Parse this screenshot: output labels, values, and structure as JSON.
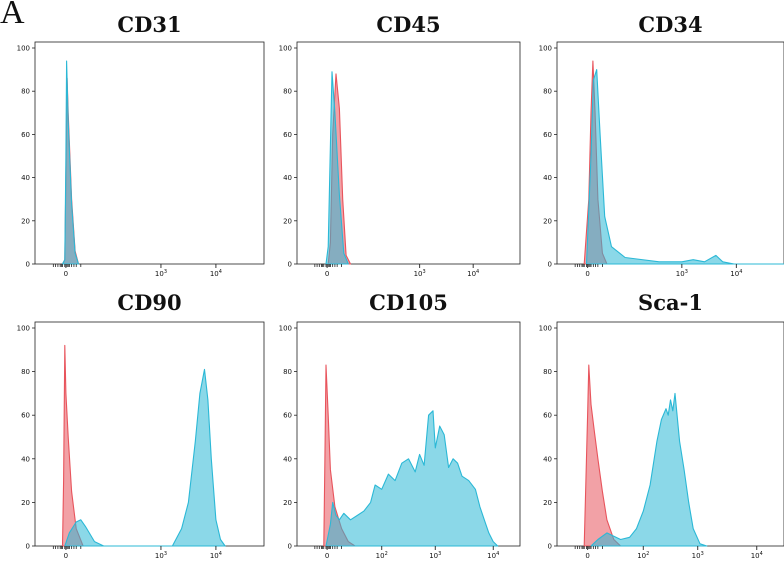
{
  "panel_label": "A",
  "chart_data": [
    {
      "type": "area",
      "title": "CD31",
      "xlabel": "",
      "ylabel": "",
      "ylim": [
        0,
        100
      ],
      "yticks": [
        "0",
        "20",
        "40",
        "60",
        "80",
        "100"
      ],
      "xticks": [
        {
          "base": "0",
          "exp": ""
        },
        {
          "base": "10",
          "exp": "3"
        },
        {
          "base": "10",
          "exp": "4"
        }
      ],
      "grid": false,
      "series": [
        {
          "color": "#e8545c",
          "points": [
            [
              0.12,
              0
            ],
            [
              0.13,
              2
            ],
            [
              0.135,
              40
            ],
            [
              0.14,
              86
            ],
            [
              0.145,
              70
            ],
            [
              0.16,
              30
            ],
            [
              0.175,
              6
            ],
            [
              0.19,
              0
            ]
          ]
        },
        {
          "color": "#2bb8d6",
          "points": [
            [
              0.12,
              0
            ],
            [
              0.13,
              2
            ],
            [
              0.135,
              50
            ],
            [
              0.138,
              94
            ],
            [
              0.145,
              66
            ],
            [
              0.16,
              28
            ],
            [
              0.175,
              5
            ],
            [
              0.19,
              0
            ]
          ]
        }
      ]
    },
    {
      "type": "area",
      "title": "CD45",
      "xlabel": "",
      "ylabel": "",
      "ylim": [
        0,
        100
      ],
      "yticks": [
        "0",
        "20",
        "40",
        "60",
        "80",
        "100"
      ],
      "xticks": [
        {
          "base": "0",
          "exp": ""
        },
        {
          "base": "10",
          "exp": "3"
        },
        {
          "base": "10",
          "exp": "4"
        }
      ],
      "grid": false,
      "series": [
        {
          "color": "#e8545c",
          "points": [
            [
              0.14,
              0
            ],
            [
              0.15,
              10
            ],
            [
              0.16,
              60
            ],
            [
              0.175,
              88
            ],
            [
              0.19,
              72
            ],
            [
              0.205,
              30
            ],
            [
              0.22,
              4
            ],
            [
              0.24,
              0
            ]
          ]
        },
        {
          "color": "#2bb8d6",
          "points": [
            [
              0.13,
              0
            ],
            [
              0.14,
              8
            ],
            [
              0.15,
              55
            ],
            [
              0.157,
              89
            ],
            [
              0.17,
              70
            ],
            [
              0.19,
              32
            ],
            [
              0.21,
              5
            ],
            [
              0.23,
              0
            ]
          ]
        }
      ]
    },
    {
      "type": "area",
      "title": "CD34",
      "xlabel": "",
      "ylabel": "",
      "ylim": [
        0,
        100
      ],
      "yticks": [
        "0",
        "20",
        "40",
        "60",
        "80",
        "100"
      ],
      "xticks": [
        {
          "base": "0",
          "exp": ""
        },
        {
          "base": "10",
          "exp": "3"
        },
        {
          "base": "10",
          "exp": "4"
        }
      ],
      "grid": false,
      "series": [
        {
          "color": "#e8545c",
          "points": [
            [
              0.12,
              0
            ],
            [
              0.14,
              30
            ],
            [
              0.15,
              70
            ],
            [
              0.158,
              94
            ],
            [
              0.168,
              70
            ],
            [
              0.18,
              30
            ],
            [
              0.2,
              5
            ],
            [
              0.22,
              0
            ]
          ]
        },
        {
          "color": "#2bb8d6",
          "points": [
            [
              0.13,
              0
            ],
            [
              0.15,
              50
            ],
            [
              0.16,
              85
            ],
            [
              0.175,
              90
            ],
            [
              0.19,
              60
            ],
            [
              0.21,
              22
            ],
            [
              0.24,
              8
            ],
            [
              0.3,
              3
            ],
            [
              0.45,
              1
            ],
            [
              0.55,
              1
            ],
            [
              0.6,
              2
            ],
            [
              0.65,
              1
            ],
            [
              0.7,
              4
            ],
            [
              0.73,
              1
            ],
            [
              0.78,
              0
            ],
            [
              1.0,
              0
            ]
          ]
        }
      ]
    },
    {
      "type": "area",
      "title": "CD90",
      "xlabel": "",
      "ylabel": "",
      "ylim": [
        0,
        100
      ],
      "yticks": [
        "0",
        "20",
        "40",
        "60",
        "80",
        "100"
      ],
      "xticks": [
        {
          "base": "0",
          "exp": ""
        },
        {
          "base": "10",
          "exp": "3"
        },
        {
          "base": "10",
          "exp": "4"
        }
      ],
      "grid": false,
      "series": [
        {
          "color": "#e8545c",
          "points": [
            [
              0.12,
              0
            ],
            [
              0.125,
              30
            ],
            [
              0.13,
              92
            ],
            [
              0.135,
              70
            ],
            [
              0.145,
              50
            ],
            [
              0.16,
              25
            ],
            [
              0.18,
              8
            ],
            [
              0.21,
              0
            ]
          ]
        },
        {
          "color": "#2bb8d6",
          "points": [
            [
              0.13,
              0
            ],
            [
              0.15,
              6
            ],
            [
              0.18,
              11
            ],
            [
              0.2,
              12
            ],
            [
              0.22,
              9
            ],
            [
              0.26,
              2
            ],
            [
              0.3,
              0
            ],
            [
              0.6,
              0
            ],
            [
              0.64,
              8
            ],
            [
              0.67,
              20
            ],
            [
              0.7,
              48
            ],
            [
              0.72,
              70
            ],
            [
              0.74,
              81
            ],
            [
              0.755,
              67
            ],
            [
              0.77,
              40
            ],
            [
              0.79,
              12
            ],
            [
              0.81,
              3
            ],
            [
              0.83,
              0
            ]
          ]
        }
      ]
    },
    {
      "type": "area",
      "title": "CD105",
      "xlabel": "",
      "ylabel": "",
      "ylim": [
        0,
        100
      ],
      "yticks": [
        "0",
        "20",
        "40",
        "60",
        "80",
        "100"
      ],
      "xticks": [
        {
          "base": "0",
          "exp": ""
        },
        {
          "base": "10",
          "exp": "2"
        },
        {
          "base": "10",
          "exp": "3"
        },
        {
          "base": "10",
          "exp": "4"
        }
      ],
      "grid": false,
      "series": [
        {
          "color": "#e8545c",
          "points": [
            [
              0.12,
              0
            ],
            [
              0.125,
              40
            ],
            [
              0.13,
              83
            ],
            [
              0.14,
              60
            ],
            [
              0.15,
              35
            ],
            [
              0.17,
              18
            ],
            [
              0.2,
              8
            ],
            [
              0.23,
              2
            ],
            [
              0.26,
              0
            ]
          ]
        },
        {
          "color": "#2bb8d6",
          "points": [
            [
              0.13,
              0
            ],
            [
              0.15,
              10
            ],
            [
              0.16,
              20
            ],
            [
              0.175,
              14
            ],
            [
              0.19,
              12
            ],
            [
              0.21,
              15
            ],
            [
              0.24,
              12
            ],
            [
              0.27,
              14
            ],
            [
              0.3,
              16
            ],
            [
              0.33,
              20
            ],
            [
              0.35,
              28
            ],
            [
              0.38,
              26
            ],
            [
              0.41,
              33
            ],
            [
              0.44,
              30
            ],
            [
              0.47,
              38
            ],
            [
              0.5,
              40
            ],
            [
              0.53,
              34
            ],
            [
              0.55,
              42
            ],
            [
              0.57,
              37
            ],
            [
              0.59,
              60
            ],
            [
              0.61,
              62
            ],
            [
              0.62,
              45
            ],
            [
              0.64,
              55
            ],
            [
              0.66,
              51
            ],
            [
              0.68,
              36
            ],
            [
              0.7,
              40
            ],
            [
              0.72,
              38
            ],
            [
              0.74,
              32
            ],
            [
              0.77,
              30
            ],
            [
              0.8,
              26
            ],
            [
              0.82,
              18
            ],
            [
              0.84,
              12
            ],
            [
              0.86,
              6
            ],
            [
              0.88,
              2
            ],
            [
              0.9,
              0
            ]
          ]
        }
      ]
    },
    {
      "type": "area",
      "title": "Sca-1",
      "xlabel": "",
      "ylabel": "",
      "ylim": [
        0,
        100
      ],
      "yticks": [
        "0",
        "20",
        "40",
        "60",
        "80",
        "100"
      ],
      "xticks": [
        {
          "base": "0",
          "exp": ""
        },
        {
          "base": "10",
          "exp": "2"
        },
        {
          "base": "10",
          "exp": "3"
        },
        {
          "base": "10",
          "exp": "4"
        }
      ],
      "grid": false,
      "series": [
        {
          "color": "#e8545c",
          "points": [
            [
              0.12,
              0
            ],
            [
              0.135,
              60
            ],
            [
              0.14,
              83
            ],
            [
              0.15,
              65
            ],
            [
              0.165,
              52
            ],
            [
              0.18,
              40
            ],
            [
              0.2,
              25
            ],
            [
              0.22,
              12
            ],
            [
              0.25,
              3
            ],
            [
              0.28,
              0
            ]
          ]
        },
        {
          "color": "#2bb8d6",
          "points": [
            [
              0.15,
              0
            ],
            [
              0.18,
              3
            ],
            [
              0.22,
              6
            ],
            [
              0.28,
              3
            ],
            [
              0.32,
              4
            ],
            [
              0.35,
              8
            ],
            [
              0.38,
              16
            ],
            [
              0.41,
              28
            ],
            [
              0.44,
              48
            ],
            [
              0.46,
              58
            ],
            [
              0.48,
              63
            ],
            [
              0.49,
              60
            ],
            [
              0.5,
              67
            ],
            [
              0.51,
              62
            ],
            [
              0.52,
              70
            ],
            [
              0.54,
              48
            ],
            [
              0.56,
              35
            ],
            [
              0.58,
              20
            ],
            [
              0.6,
              8
            ],
            [
              0.63,
              1
            ],
            [
              0.66,
              0
            ]
          ]
        }
      ]
    }
  ]
}
